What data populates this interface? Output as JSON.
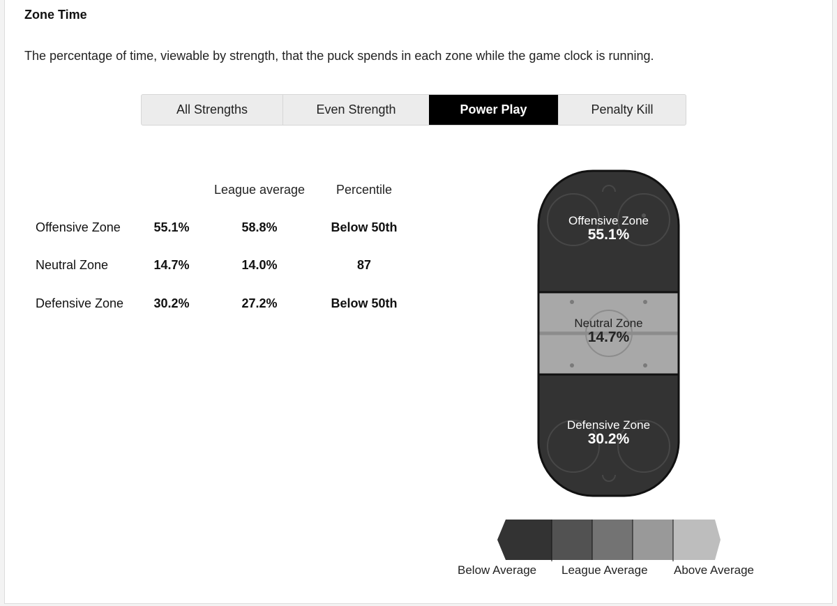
{
  "section": {
    "title": "Zone Time",
    "description": "The percentage of time, viewable by strength, that the puck spends in each zone while the game clock is running."
  },
  "tabs": [
    {
      "label": "All Strengths",
      "active": false
    },
    {
      "label": "Even Strength",
      "active": false
    },
    {
      "label": "Power Play",
      "active": true
    },
    {
      "label": "Penalty Kill",
      "active": false
    }
  ],
  "table": {
    "headers": [
      "",
      "",
      "League average",
      "Percentile"
    ],
    "rows": [
      {
        "zone": "Offensive Zone",
        "value": "55.1%",
        "league_average": "58.8%",
        "percentile": "Below 50th"
      },
      {
        "zone": "Neutral Zone",
        "value": "14.7%",
        "league_average": "14.0%",
        "percentile": "87"
      },
      {
        "zone": "Defensive Zone",
        "value": "30.2%",
        "league_average": "27.2%",
        "percentile": "Below 50th"
      }
    ]
  },
  "rink": {
    "offensive": {
      "name": "Offensive Zone",
      "value": "55.1%",
      "color": "#333333"
    },
    "neutral": {
      "name": "Neutral Zone",
      "value": "14.7%",
      "color": "#a8a8a8"
    },
    "defensive": {
      "name": "Defensive Zone",
      "value": "30.2%",
      "color": "#333333"
    }
  },
  "legend": {
    "below": "Below Average",
    "league": "League Average",
    "above": "Above Average",
    "colors": [
      "#333333",
      "#525252",
      "#737373",
      "#999999",
      "#bdbdbd"
    ]
  }
}
